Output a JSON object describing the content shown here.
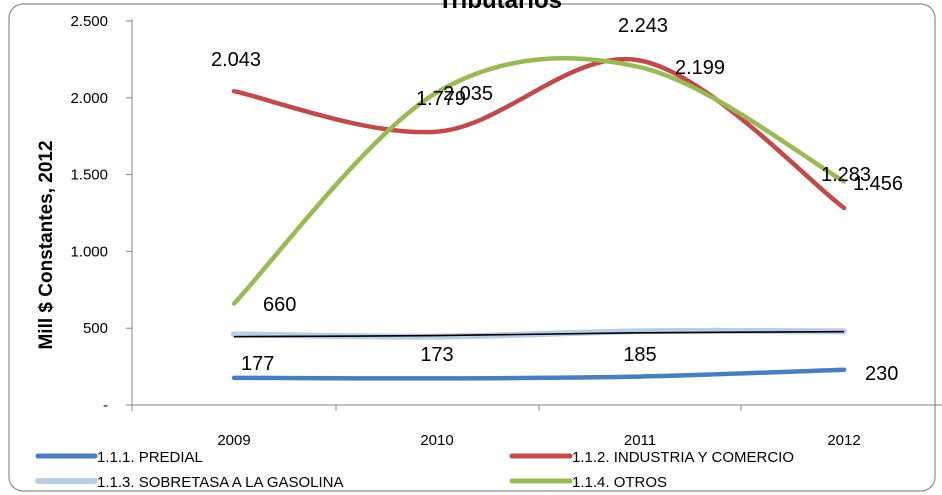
{
  "chart_data": {
    "type": "line",
    "title": "Tributarios",
    "ylabel": "Mill $ Constantes, 2012",
    "categories": [
      "2009",
      "2010",
      "2011",
      "2012"
    ],
    "y_ticks": [
      "-",
      "500",
      "1.000",
      "1.500",
      "2.000",
      "2.500"
    ],
    "ylim": [
      0,
      2500
    ],
    "grid": false,
    "legend_position": "bottom",
    "series": [
      {
        "name": "1.1.1. PREDIAL",
        "values": [
          177,
          173,
          185,
          230
        ],
        "labels": [
          "177",
          "173",
          "185",
          "230"
        ],
        "color": "#4a7ebb"
      },
      {
        "name": "1.1.2. INDUSTRIA Y COMERCIO",
        "values": [
          2043,
          1779,
          2243,
          1283
        ],
        "labels": [
          "2.043",
          "1.779",
          "2.243",
          "1.283"
        ],
        "color": "#be4b48"
      },
      {
        "name": "1.1.3. SOBRETASA A LA GASOLINA",
        "values": [
          460,
          445,
          480,
          480
        ],
        "labels": [],
        "color": "#b9cde5"
      },
      {
        "name": "1.1.4. OTROS",
        "values": [
          660,
          2035,
          2199,
          1456
        ],
        "labels": [
          "660",
          "2.035",
          "2.199",
          "1.456"
        ],
        "color": "#98b954"
      }
    ],
    "black_line_values": [
      445,
      452,
      470,
      477
    ]
  }
}
